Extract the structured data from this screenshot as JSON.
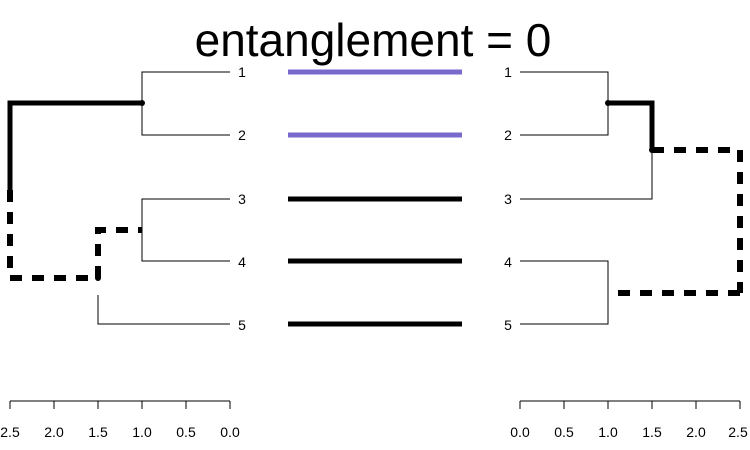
{
  "title": "entanglement = 0",
  "colors": {
    "highlight": "#7B68CC",
    "default": "#000000"
  },
  "left_tree": {
    "leaves": [
      "1",
      "2",
      "3",
      "4",
      "5"
    ],
    "axis_ticks": [
      "2.5",
      "2.0",
      "1.5",
      "1.0",
      "0.5",
      "0.0"
    ],
    "axis_direction": "reversed"
  },
  "right_tree": {
    "leaves": [
      "1",
      "2",
      "3",
      "4",
      "5"
    ],
    "axis_ticks": [
      "0.0",
      "0.5",
      "1.0",
      "1.5",
      "2.0",
      "2.5"
    ],
    "axis_direction": "normal"
  },
  "connectors": [
    {
      "from": "1",
      "to": "1",
      "color": "highlight"
    },
    {
      "from": "2",
      "to": "2",
      "color": "highlight"
    },
    {
      "from": "3",
      "to": "3",
      "color": "default"
    },
    {
      "from": "4",
      "to": "4",
      "color": "default"
    },
    {
      "from": "5",
      "to": "5",
      "color": "default"
    }
  ]
}
